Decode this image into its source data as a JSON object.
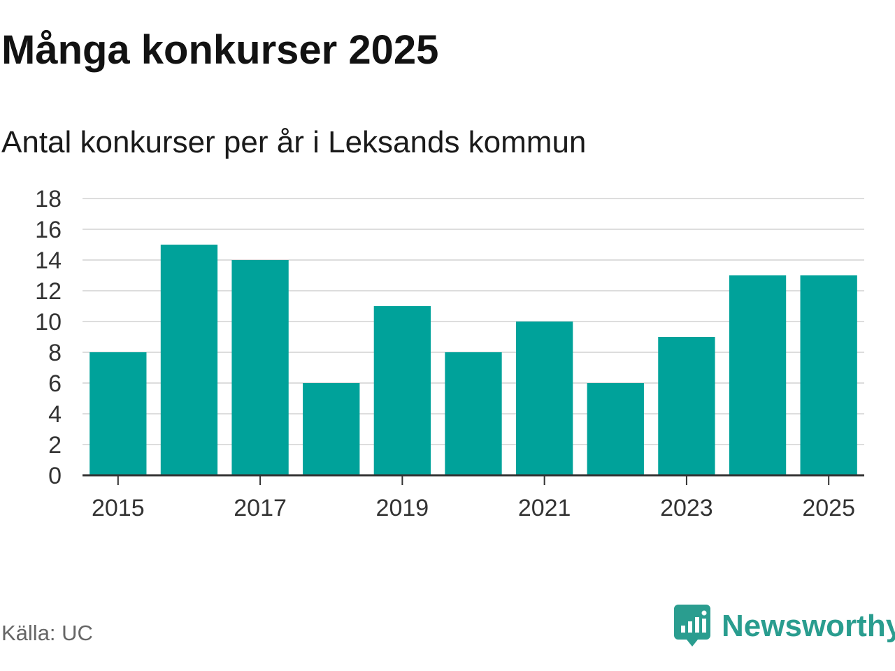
{
  "title": "Många konkurser 2025",
  "subtitle": "Antal konkurser per år i Leksands kommun",
  "source": "Källa: UC",
  "brand": {
    "name": "Newsworthy",
    "icon": "newsworthy-logo-icon",
    "color": "#2a9d8f"
  },
  "chart_data": {
    "type": "bar",
    "categories": [
      "2015",
      "2016",
      "2017",
      "2018",
      "2019",
      "2020",
      "2021",
      "2022",
      "2023",
      "2024",
      "2025"
    ],
    "values": [
      8,
      15,
      14,
      6,
      11,
      8,
      10,
      6,
      9,
      13,
      13
    ],
    "x_tick_labels": [
      "2015",
      "2017",
      "2019",
      "2021",
      "2023",
      "2025"
    ],
    "y_ticks": [
      0,
      2,
      4,
      6,
      8,
      10,
      12,
      14,
      16,
      18
    ],
    "ylim": [
      0,
      18
    ],
    "grid": true,
    "bar_color": "#00a29a",
    "xlabel": "",
    "ylabel": ""
  }
}
